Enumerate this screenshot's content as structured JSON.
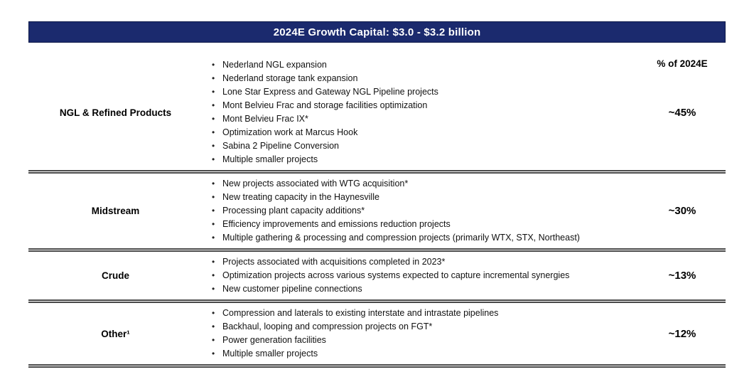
{
  "header": {
    "title": "2024E Growth Capital: $3.0 - $3.2 billion"
  },
  "columns": {
    "percent_header": "% of 2024E"
  },
  "rows": [
    {
      "category": "NGL & Refined Products",
      "percent": "~45%",
      "items": [
        "Nederland NGL expansion",
        "Nederland storage tank expansion",
        "Lone Star Express and Gateway NGL Pipeline projects",
        "Mont Belvieu Frac and storage facilities optimization",
        "Mont Belvieu Frac IX*",
        "Optimization work at Marcus Hook",
        "Sabina 2 Pipeline Conversion",
        "Multiple smaller projects"
      ]
    },
    {
      "category": "Midstream",
      "percent": "~30%",
      "items": [
        "New projects associated with WTG acquisition*",
        "New treating capacity in the Haynesville",
        "Processing plant capacity additions*",
        "Efficiency improvements and emissions reduction projects",
        "Multiple gathering & processing and compression projects (primarily WTX, STX, Northeast)"
      ]
    },
    {
      "category": "Crude",
      "percent": "~13%",
      "items": [
        "Projects associated with acquisitions completed in 2023*",
        "Optimization projects across various systems expected to capture incremental synergies",
        "New customer pipeline connections"
      ]
    },
    {
      "category": "Other¹",
      "percent": "~12%",
      "items": [
        "Compression and laterals to existing interstate and intrastate pipelines",
        "Backhaul, looping and compression projects on FGT*",
        "Power generation facilities",
        "Multiple smaller projects"
      ]
    }
  ],
  "colors": {
    "header_bg": "#1b2a6e",
    "divider": "#4a4a4a"
  }
}
